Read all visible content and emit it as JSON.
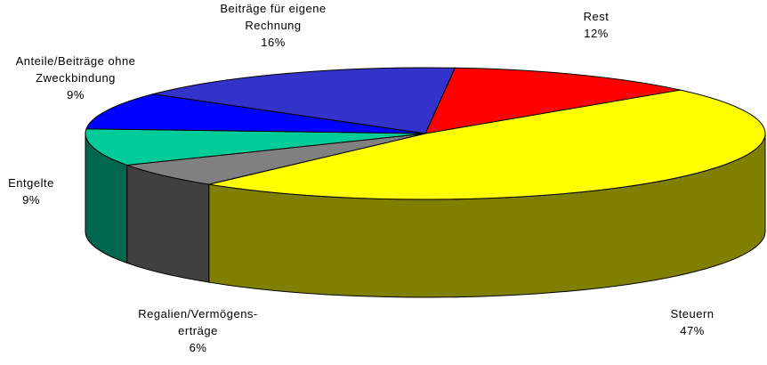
{
  "chart_data": {
    "type": "pie3d",
    "categories": [
      "Rest",
      "Steuern",
      "Regalien/Vermögens-erträge",
      "Entgelte",
      "Anteile/Beiträge ohne Zweckbindung",
      "Beiträge für eigene Rechnung"
    ],
    "values": [
      12,
      47,
      6,
      9,
      9,
      16
    ],
    "value_labels": [
      "12%",
      "47%",
      "6%",
      "9%",
      "9%",
      "16%"
    ],
    "colors": [
      "#ff0000",
      "#ffff00",
      "#808080",
      "#00cc99",
      "#0000ff",
      "#3333cc"
    ]
  }
}
